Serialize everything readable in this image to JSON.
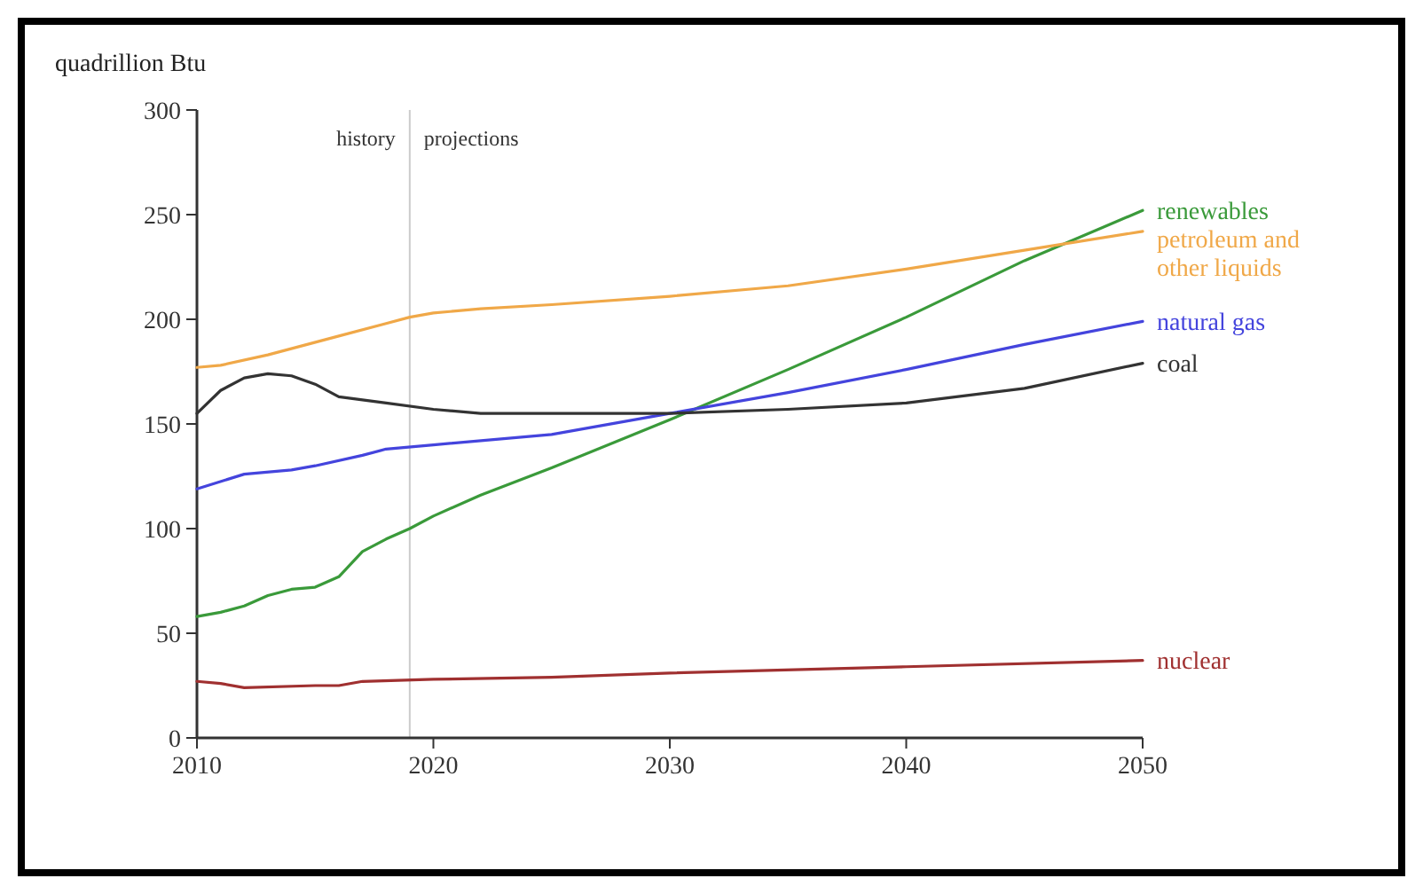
{
  "chart_data": {
    "type": "line",
    "ylabel": "quadrillion Btu",
    "xlim": [
      2010,
      2050
    ],
    "xticks": [
      2010,
      2020,
      2030,
      2040,
      2050
    ],
    "ylim": [
      0,
      300
    ],
    "yticks": [
      0,
      50,
      100,
      150,
      200,
      250,
      300
    ],
    "grid": false,
    "legend": false,
    "marker": "none",
    "line_style": "solid",
    "ref_lines": [
      {
        "axis": "x",
        "value": 2019,
        "color": "#cccccc"
      }
    ],
    "annotations": [
      "history",
      "projections"
    ],
    "series": [
      {
        "name": "renewables",
        "color": "#3a9a3a",
        "x": [
          2010,
          2011,
          2012,
          2013,
          2014,
          2015,
          2016,
          2017,
          2018,
          2019,
          2020,
          2022,
          2025,
          2030,
          2035,
          2040,
          2045,
          2050
        ],
        "values": [
          58,
          60,
          63,
          68,
          71,
          72,
          77,
          89,
          95,
          100,
          106,
          116,
          129,
          152,
          176,
          201,
          228,
          252
        ]
      },
      {
        "name": "petroleum and other liquids",
        "color": "#f0a848",
        "x": [
          2010,
          2011,
          2013,
          2016,
          2018,
          2019,
          2020,
          2022,
          2025,
          2030,
          2035,
          2040,
          2045,
          2050
        ],
        "values": [
          177,
          178,
          183,
          192,
          198,
          201,
          203,
          205,
          207,
          211,
          216,
          224,
          233,
          242
        ]
      },
      {
        "name": "natural gas",
        "color": "#4444dd",
        "x": [
          2010,
          2012,
          2014,
          2015,
          2017,
          2018,
          2020,
          2025,
          2030,
          2035,
          2040,
          2045,
          2050
        ],
        "values": [
          119,
          126,
          128,
          130,
          135,
          138,
          140,
          145,
          155,
          165,
          176,
          188,
          199
        ]
      },
      {
        "name": "coal",
        "color": "#333333",
        "x": [
          2010,
          2011,
          2012,
          2013,
          2014,
          2015,
          2016,
          2018,
          2020,
          2022,
          2025,
          2030,
          2035,
          2040,
          2045,
          2050
        ],
        "values": [
          155,
          166,
          172,
          174,
          173,
          169,
          163,
          160,
          157,
          155,
          155,
          155,
          157,
          160,
          167,
          179
        ]
      },
      {
        "name": "nuclear",
        "color": "#a03030",
        "x": [
          2010,
          2011,
          2012,
          2015,
          2016,
          2017,
          2020,
          2025,
          2030,
          2040,
          2050
        ],
        "values": [
          27,
          26,
          24,
          25,
          25,
          27,
          28,
          29,
          31,
          34,
          37
        ]
      }
    ]
  }
}
